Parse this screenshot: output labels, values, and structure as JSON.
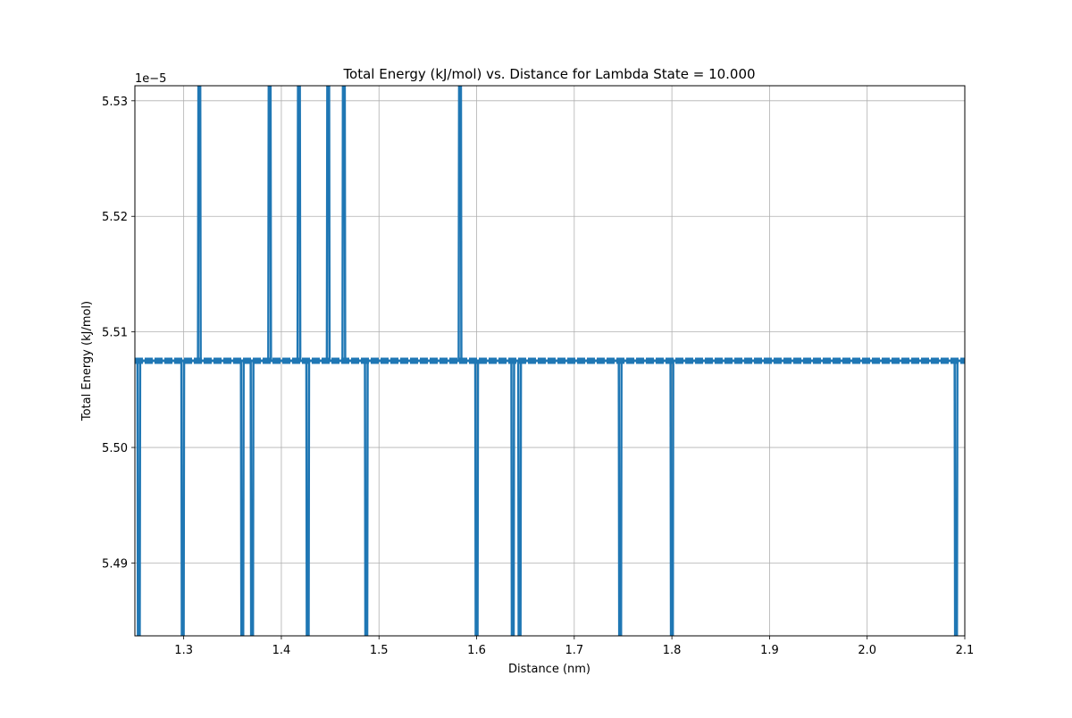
{
  "chart_data": {
    "type": "line",
    "title": "Total Energy (kJ/mol) vs. Distance for Lambda State = 10.000",
    "xlabel": "Distance (nm)",
    "ylabel": "Total Energy (kJ/mol)",
    "y_offset_text": "1e−5",
    "xlim": [
      1.25,
      2.1
    ],
    "ylim": [
      5.4837,
      5.5313
    ],
    "x_ticks": [
      1.3,
      1.4,
      1.5,
      1.6,
      1.7,
      1.8,
      1.9,
      2.0,
      2.1
    ],
    "x_tick_labels": [
      "1.3",
      "1.4",
      "1.5",
      "1.6",
      "1.7",
      "1.8",
      "1.9",
      "2.0",
      "2.1"
    ],
    "y_ticks": [
      5.49,
      5.5,
      5.51,
      5.52,
      5.53
    ],
    "y_tick_labels": [
      "5.49",
      "5.50",
      "5.51",
      "5.52",
      "5.53"
    ],
    "grid": true,
    "color": "#1f77b4",
    "baseline_energy": 5.5075,
    "x_range": [
      1.25,
      2.1
    ],
    "spikes_up_x": [
      1.316,
      1.388,
      1.418,
      1.448,
      1.464,
      1.583
    ],
    "spikes_down_x": [
      1.254,
      1.299,
      1.36,
      1.37,
      1.427,
      1.487,
      1.6,
      1.637,
      1.644,
      1.747,
      1.8,
      2.091
    ],
    "spike_up_energy": 5.532,
    "spike_down_energy": 5.483
  }
}
